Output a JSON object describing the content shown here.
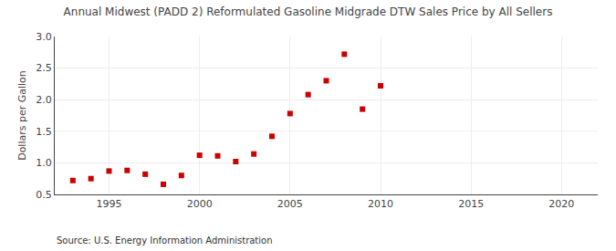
{
  "chart_data": {
    "type": "scatter",
    "title": "Annual Midwest (PADD 2) Reformulated Gasoline Midgrade DTW Sales Price by All Sellers",
    "y_label": "Dollars per Gallon",
    "annotations": [
      "Source: U.S. Energy Information Administration"
    ],
    "x": [
      1993,
      1994,
      1995,
      1996,
      1997,
      1998,
      1999,
      2000,
      2001,
      2002,
      2003,
      2004,
      2005,
      2006,
      2007,
      2008,
      2009,
      2010
    ],
    "values": [
      0.72,
      0.75,
      0.87,
      0.88,
      0.82,
      0.66,
      0.8,
      1.12,
      1.11,
      1.02,
      1.14,
      1.42,
      1.78,
      2.08,
      2.3,
      2.72,
      1.85,
      2.22
    ],
    "color": "#cc0000",
    "marker": "square",
    "xlim": [
      1992,
      2022
    ],
    "xticks": [
      1995,
      2000,
      2005,
      2010,
      2015,
      2020
    ],
    "ylim": [
      0.5,
      3.0
    ],
    "yticks": [
      0.5,
      {
        "value": 1.0,
        "label": "1.0"
      },
      1.5,
      {
        "value": 2.0,
        "label": "2.0"
      },
      2.5,
      {
        "value": 3.0,
        "label": "3.0"
      }
    ],
    "grid": true
  }
}
